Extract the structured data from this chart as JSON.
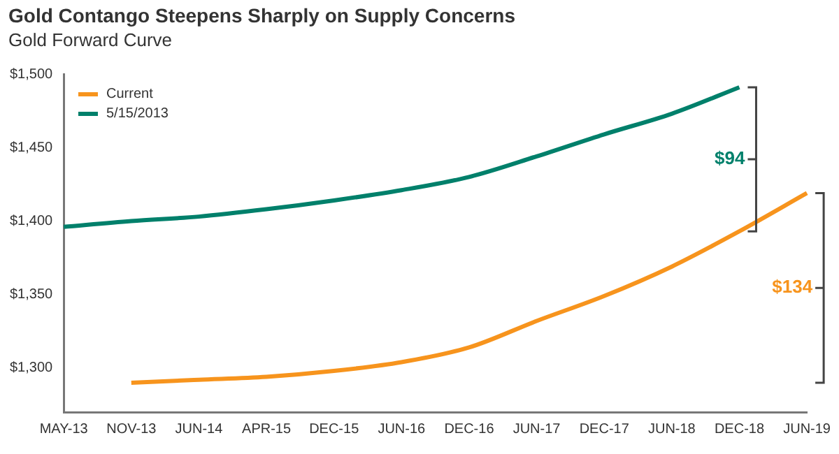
{
  "chart_data": {
    "type": "line",
    "title": "Gold Contango Steepens Sharply on Supply Concerns",
    "subtitle": "Gold Forward Curve",
    "categories": [
      "MAY-13",
      "NOV-13",
      "JUN-14",
      "APR-15",
      "DEC-15",
      "JUN-16",
      "DEC-16",
      "JUN-17",
      "DEC-17",
      "JUN-18",
      "DEC-18",
      "JUN-19"
    ],
    "series": [
      {
        "name": "Current",
        "color": "#f7941d",
        "values": [
          null,
          1290,
          1292,
          1294,
          1298,
          1304,
          1314,
          1332,
          1349,
          1369,
          1393,
          1419
        ]
      },
      {
        "name": "5/15/2013",
        "color": "#00806b",
        "values": [
          1396,
          1400,
          1403,
          1408,
          1414,
          1421,
          1430,
          1444,
          1459,
          1473,
          1491,
          null
        ]
      }
    ],
    "ylim": [
      1270,
      1500
    ],
    "yticks": [
      {
        "value": 1300,
        "label": "$1,300"
      },
      {
        "value": 1350,
        "label": "$1,350"
      },
      {
        "value": 1400,
        "label": "$1,400"
      },
      {
        "value": 1450,
        "label": "$1,450"
      },
      {
        "value": 1500,
        "label": "$1,500"
      }
    ],
    "grid": false,
    "legend": "top left",
    "marker": "none",
    "line_style": "solid",
    "annotations": [
      "$134",
      "$94"
    ]
  }
}
